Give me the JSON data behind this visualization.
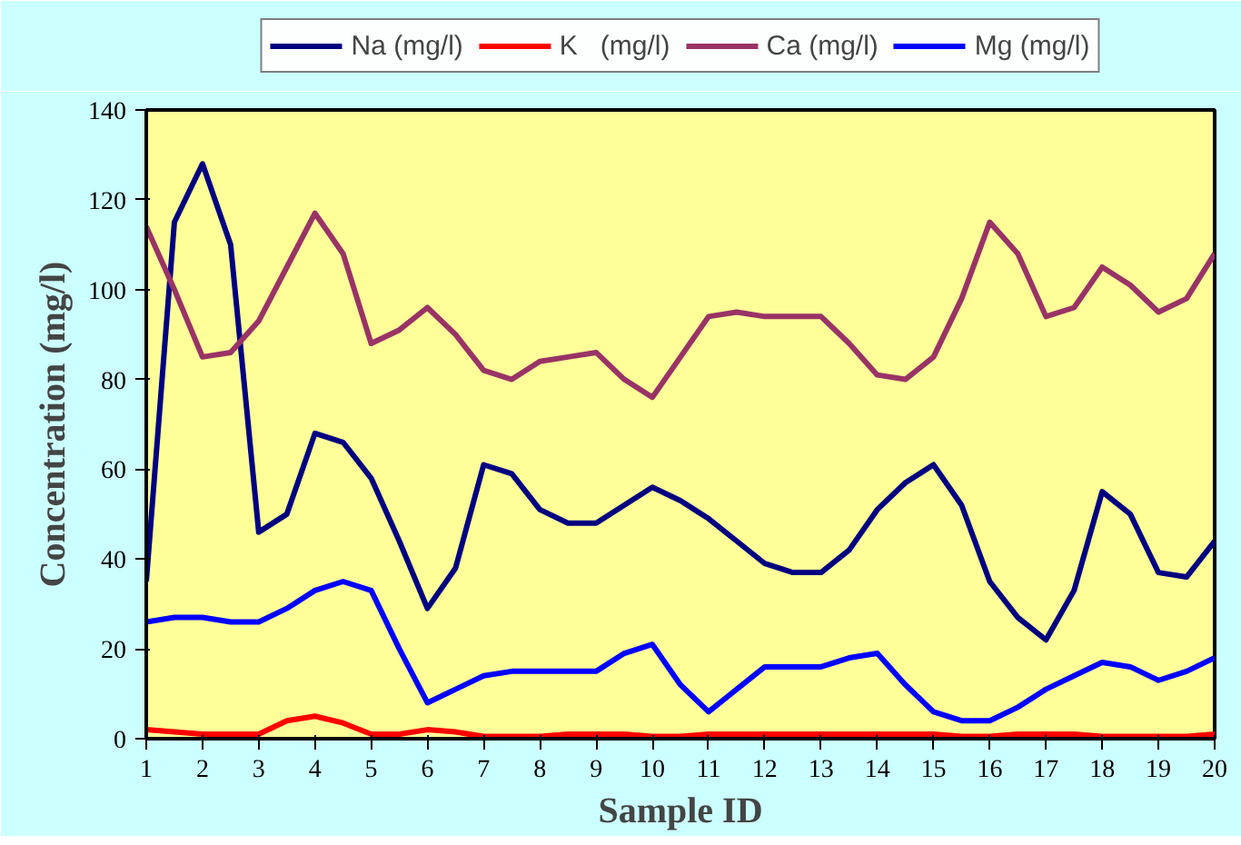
{
  "chart_data": {
    "type": "line",
    "xlabel": "Sample ID",
    "ylabel": "Concentration (mg/l)",
    "x": [
      1,
      1.5,
      2,
      2.5,
      3,
      3.5,
      4,
      4.5,
      5,
      5.5,
      6,
      6.5,
      7,
      7.5,
      8,
      8.5,
      9,
      9.5,
      10,
      10.5,
      11,
      11.5,
      12,
      12.5,
      13,
      13.5,
      14,
      14.5,
      15,
      15.5,
      16,
      16.5,
      17,
      17.5,
      18,
      18.5,
      19,
      19.5,
      20
    ],
    "xlim": [
      1,
      20
    ],
    "xticks": [
      1,
      2,
      3,
      4,
      5,
      6,
      7,
      8,
      9,
      10,
      11,
      12,
      13,
      14,
      15,
      16,
      17,
      18,
      19,
      20
    ],
    "ylim": [
      0,
      140
    ],
    "yticks": [
      0,
      20,
      40,
      60,
      80,
      100,
      120,
      140
    ],
    "grid": false,
    "legend": "top",
    "marker": "none",
    "line_style": "solid",
    "series": [
      {
        "name": "Na (mg/l)",
        "color": "#000080",
        "values": [
          35,
          115,
          128,
          110,
          46,
          50,
          68,
          66,
          58,
          44,
          29,
          38,
          61,
          59,
          51,
          48,
          48,
          52,
          56,
          53,
          49,
          44,
          39,
          37,
          37,
          42,
          51,
          57,
          61,
          52,
          35,
          27,
          22,
          33,
          55,
          50,
          37,
          36,
          44
        ]
      },
      {
        "name": "K   (mg/l)",
        "color": "#ff0000",
        "values": [
          2,
          1.5,
          1,
          1,
          1,
          4,
          5,
          3.5,
          1,
          1,
          2,
          1.5,
          0.5,
          0.5,
          0.5,
          1,
          1,
          1,
          0.5,
          0.5,
          1,
          1,
          1,
          1,
          1,
          1,
          1,
          1,
          1,
          0.5,
          0.5,
          1,
          1,
          1,
          0.5,
          0.5,
          0.5,
          0.5,
          1
        ]
      },
      {
        "name": "Ca (mg/l)",
        "color": "#993366",
        "values": [
          114,
          100,
          85,
          86,
          93,
          105,
          117,
          108,
          88,
          91,
          96,
          90,
          82,
          80,
          84,
          85,
          86,
          80,
          76,
          85,
          94,
          95,
          94,
          94,
          94,
          88,
          81,
          80,
          85,
          98,
          115,
          108,
          94,
          96,
          105,
          101,
          95,
          98,
          108
        ]
      },
      {
        "name": "Mg (mg/l)",
        "color": "#0000ff",
        "values": [
          26,
          27,
          27,
          26,
          26,
          29,
          33,
          35,
          33,
          20,
          8,
          11,
          14,
          15,
          15,
          15,
          15,
          19,
          21,
          12,
          6,
          11,
          16,
          16,
          16,
          18,
          19,
          12,
          6,
          4,
          4,
          7,
          11,
          14,
          17,
          16,
          13,
          15,
          18
        ]
      }
    ]
  }
}
